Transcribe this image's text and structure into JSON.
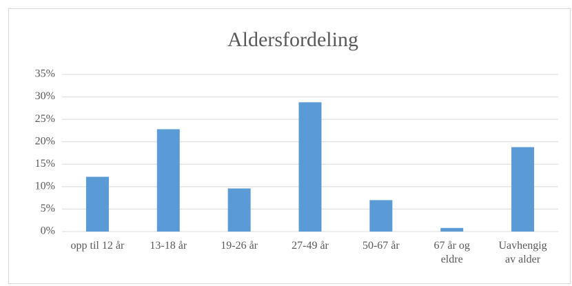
{
  "chart_data": {
    "type": "bar",
    "title": "Aldersfordeling",
    "categories": [
      "opp til 12 år",
      "13-18 år",
      "19-26 år",
      "27-49 år",
      "50-67 år",
      "67 år og eldre",
      "Uavhengig av alder"
    ],
    "values": [
      12.2,
      22.8,
      9.6,
      28.8,
      7.0,
      0.8,
      18.8
    ],
    "color": "#5b9bd5",
    "ylim": [
      0,
      35
    ],
    "yticks": [
      {
        "value": 0,
        "label": "0%"
      },
      {
        "value": 5,
        "label": "5%"
      },
      {
        "value": 10,
        "label": "10%"
      },
      {
        "value": 15,
        "label": "15%"
      },
      {
        "value": 20,
        "label": "20%"
      },
      {
        "value": 25,
        "label": "25%"
      },
      {
        "value": 30,
        "label": "30%"
      },
      {
        "value": 35,
        "label": "35%"
      }
    ],
    "grid": true
  }
}
